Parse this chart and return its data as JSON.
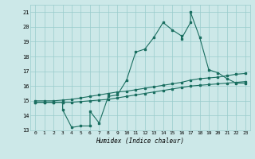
{
  "xlabel": "Humidex (Indice chaleur)",
  "xlim": [
    -0.5,
    23.5
  ],
  "ylim": [
    13,
    21.5
  ],
  "xticks": [
    0,
    1,
    2,
    3,
    4,
    5,
    6,
    7,
    8,
    9,
    10,
    11,
    12,
    13,
    14,
    15,
    16,
    17,
    18,
    19,
    20,
    21,
    22,
    23
  ],
  "yticks": [
    13,
    14,
    15,
    16,
    17,
    18,
    19,
    20,
    21
  ],
  "bg_color": "#cce8e8",
  "line_color": "#1a6e60",
  "grid_color": "#99cccc",
  "line1_x": [
    0,
    1,
    2,
    3,
    3,
    4,
    5,
    6,
    6,
    7,
    8,
    9,
    10,
    11,
    12,
    13,
    14,
    15,
    16,
    16,
    17,
    17,
    18,
    19,
    20,
    21,
    22,
    23
  ],
  "line1_y": [
    14.9,
    14.9,
    14.9,
    14.9,
    14.4,
    13.2,
    13.3,
    13.3,
    14.3,
    13.5,
    15.3,
    15.4,
    16.4,
    18.3,
    18.5,
    19.3,
    20.3,
    19.8,
    19.4,
    19.2,
    20.3,
    21.0,
    19.3,
    17.1,
    16.9,
    16.5,
    16.2,
    16.2
  ],
  "line2_x": [
    0,
    1,
    2,
    3,
    4,
    5,
    6,
    7,
    8,
    9,
    10,
    11,
    12,
    13,
    14,
    15,
    16,
    17,
    18,
    19,
    20,
    21,
    22,
    23
  ],
  "line2_y": [
    15.0,
    15.0,
    15.0,
    15.05,
    15.1,
    15.2,
    15.3,
    15.4,
    15.5,
    15.6,
    15.65,
    15.75,
    15.85,
    15.95,
    16.05,
    16.15,
    16.25,
    16.4,
    16.5,
    16.55,
    16.6,
    16.7,
    16.8,
    16.85
  ],
  "line3_x": [
    0,
    1,
    2,
    3,
    4,
    5,
    6,
    7,
    8,
    9,
    10,
    11,
    12,
    13,
    14,
    15,
    16,
    17,
    18,
    19,
    20,
    21,
    22,
    23
  ],
  "line3_y": [
    14.9,
    14.9,
    14.9,
    14.9,
    14.9,
    14.95,
    15.0,
    15.05,
    15.1,
    15.2,
    15.3,
    15.4,
    15.5,
    15.6,
    15.7,
    15.8,
    15.9,
    16.0,
    16.05,
    16.1,
    16.15,
    16.2,
    16.25,
    16.3
  ]
}
